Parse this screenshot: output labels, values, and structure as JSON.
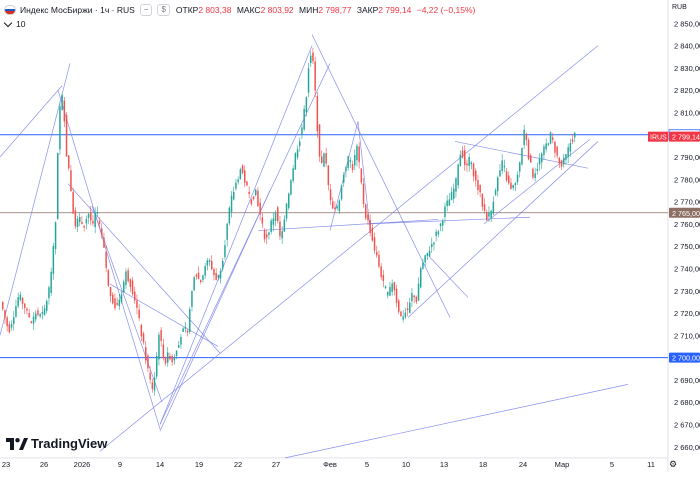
{
  "legend": {
    "title": "Индекс МосБиржи · 1ч · RUS",
    "btn_minus": "−",
    "btn_dollar": "$",
    "open_label": "ОТКР",
    "open": "2 803,38",
    "high_label": "МАКС",
    "high": "2 803,92",
    "low_label": "МИН",
    "low": "2 798,77",
    "close_label": "ЗАКР",
    "close": "2 799,14",
    "change": "−4,22 (−0,15%)"
  },
  "indicators_count": "10",
  "currency": "RUB",
  "brand": "TradingView",
  "colors": {
    "up": "#26a69a",
    "down": "#ef5350",
    "trend": "#7b83eb",
    "hline": "#2962ff",
    "brown": "#8d6e63"
  },
  "chart_data": {
    "type": "candlestick",
    "title": "Индекс МосБиржи · 1ч · RUS",
    "ylim": [
      2655,
      2858
    ],
    "y_ticks": [
      2660,
      2670,
      2680,
      2690,
      2700,
      2710,
      2720,
      2730,
      2740,
      2750,
      2760,
      2770,
      2780,
      2790,
      2800,
      2810,
      2820,
      2830,
      2840,
      2850
    ],
    "x_labels": [
      "23",
      "26",
      "2026",
      "9",
      "14",
      "19",
      "22",
      "27",
      "Фев",
      "5",
      "10",
      "13",
      "18",
      "24",
      "Мар",
      "5",
      "11"
    ],
    "price_labels": [
      {
        "value": 2800,
        "text": "2 800,00",
        "style": "hline"
      },
      {
        "value": 2799.14,
        "text": "2 799,14",
        "tag": "IRUS",
        "style": "last"
      },
      {
        "value": 2765,
        "text": "2 765,00",
        "style": "brown"
      },
      {
        "value": 2700,
        "text": "2 700,00",
        "style": "hline"
      }
    ],
    "horizontal_lines": [
      2800,
      2765,
      2700
    ],
    "close_path": [
      [
        0,
        2725
      ],
      [
        4,
        2718
      ],
      [
        8,
        2712
      ],
      [
        12,
        2718
      ],
      [
        18,
        2728
      ],
      [
        25,
        2722
      ],
      [
        30,
        2715
      ],
      [
        35,
        2720
      ],
      [
        42,
        2718
      ],
      [
        48,
        2730
      ],
      [
        52,
        2745
      ],
      [
        55,
        2762
      ],
      [
        58,
        2808
      ],
      [
        61,
        2818
      ],
      [
        63,
        2812
      ],
      [
        66,
        2790
      ],
      [
        68,
        2785
      ],
      [
        71,
        2772
      ],
      [
        74,
        2760
      ],
      [
        78,
        2762
      ],
      [
        83,
        2760
      ],
      [
        88,
        2765
      ],
      [
        92,
        2758
      ],
      [
        95,
        2766
      ],
      [
        98,
        2760
      ],
      [
        102,
        2752
      ],
      [
        105,
        2742
      ],
      [
        108,
        2730
      ],
      [
        112,
        2726
      ],
      [
        115,
        2722
      ],
      [
        120,
        2728
      ],
      [
        125,
        2738
      ],
      [
        130,
        2733
      ],
      [
        135,
        2725
      ],
      [
        140,
        2712
      ],
      [
        145,
        2700
      ],
      [
        149,
        2690
      ],
      [
        152,
        2686
      ],
      [
        155,
        2695
      ],
      [
        158,
        2712
      ],
      [
        162,
        2702
      ],
      [
        165,
        2698
      ],
      [
        168,
        2702
      ],
      [
        172,
        2698
      ],
      [
        176,
        2705
      ],
      [
        182,
        2712
      ],
      [
        186,
        2710
      ],
      [
        190,
        2725
      ],
      [
        194,
        2740
      ],
      [
        198,
        2735
      ],
      [
        203,
        2738
      ],
      [
        208,
        2745
      ],
      [
        212,
        2738
      ],
      [
        217,
        2735
      ],
      [
        222,
        2745
      ],
      [
        226,
        2758
      ],
      [
        230,
        2770
      ],
      [
        235,
        2778
      ],
      [
        240,
        2785
      ],
      [
        245,
        2778
      ],
      [
        250,
        2770
      ],
      [
        255,
        2775
      ],
      [
        260,
        2762
      ],
      [
        265,
        2752
      ],
      [
        270,
        2760
      ],
      [
        275,
        2766
      ],
      [
        280,
        2752
      ],
      [
        285,
        2765
      ],
      [
        290,
        2780
      ],
      [
        295,
        2792
      ],
      [
        300,
        2800
      ],
      [
        305,
        2815
      ],
      [
        308,
        2832
      ],
      [
        311,
        2838
      ],
      [
        314,
        2822
      ],
      [
        317,
        2800
      ],
      [
        320,
        2785
      ],
      [
        324,
        2792
      ],
      [
        328,
        2775
      ],
      [
        332,
        2768
      ],
      [
        336,
        2766
      ],
      [
        340,
        2775
      ],
      [
        344,
        2785
      ],
      [
        348,
        2790
      ],
      [
        352,
        2785
      ],
      [
        356,
        2795
      ],
      [
        360,
        2780
      ],
      [
        364,
        2765
      ],
      [
        368,
        2760
      ],
      [
        372,
        2752
      ],
      [
        376,
        2745
      ],
      [
        380,
        2738
      ],
      [
        384,
        2730
      ],
      [
        388,
        2728
      ],
      [
        392,
        2735
      ],
      [
        396,
        2725
      ],
      [
        400,
        2718
      ],
      [
        404,
        2720
      ],
      [
        408,
        2722
      ],
      [
        412,
        2730
      ],
      [
        416,
        2725
      ],
      [
        420,
        2740
      ],
      [
        425,
        2745
      ],
      [
        430,
        2750
      ],
      [
        435,
        2755
      ],
      [
        440,
        2760
      ],
      [
        445,
        2768
      ],
      [
        450,
        2772
      ],
      [
        455,
        2778
      ],
      [
        458,
        2790
      ],
      [
        461,
        2793
      ],
      [
        465,
        2785
      ],
      [
        470,
        2790
      ],
      [
        474,
        2780
      ],
      [
        478,
        2775
      ],
      [
        482,
        2768
      ],
      [
        486,
        2763
      ],
      [
        490,
        2765
      ],
      [
        494,
        2775
      ],
      [
        498,
        2782
      ],
      [
        502,
        2788
      ],
      [
        506,
        2780
      ],
      [
        510,
        2775
      ],
      [
        515,
        2778
      ],
      [
        520,
        2790
      ],
      [
        524,
        2804
      ],
      [
        528,
        2790
      ],
      [
        532,
        2782
      ],
      [
        536,
        2785
      ],
      [
        540,
        2790
      ],
      [
        545,
        2795
      ],
      [
        550,
        2800
      ],
      [
        555,
        2792
      ],
      [
        560,
        2785
      ],
      [
        565,
        2790
      ],
      [
        570,
        2797
      ],
      [
        574,
        2800
      ],
      [
        576,
        2799.14
      ]
    ],
    "trend_lines": [
      [
        [
          0,
          2710
        ],
        [
          70,
          2832
        ]
      ],
      [
        [
          0,
          2790
        ],
        [
          62,
          2822
        ]
      ],
      [
        [
          58,
          2820
        ],
        [
          160,
          2668
        ]
      ],
      [
        [
          68,
          2778
        ],
        [
          220,
          2702
        ]
      ],
      [
        [
          92,
          2768
        ],
        [
          162,
          2680
        ]
      ],
      [
        [
          110,
          2733
        ],
        [
          218,
          2705
        ]
      ],
      [
        [
          160,
          2670
        ],
        [
          312,
          2840
        ]
      ],
      [
        [
          160,
          2670
        ],
        [
          330,
          2832
        ]
      ],
      [
        [
          160,
          2667
        ],
        [
          270,
          2775
        ]
      ],
      [
        [
          258,
          2757
        ],
        [
          438,
          2762
        ]
      ],
      [
        [
          312,
          2845
        ],
        [
          450,
          2718
        ]
      ],
      [
        [
          330,
          2757
        ],
        [
          358,
          2806
        ]
      ],
      [
        [
          358,
          2806
        ],
        [
          370,
          2758
        ]
      ],
      [
        [
          100,
          2658
        ],
        [
          598,
          2840
        ]
      ],
      [
        [
          285,
          2655
        ],
        [
          628,
          2688
        ]
      ],
      [
        [
          368,
          2760
        ],
        [
          530,
          2763
        ]
      ],
      [
        [
          430,
          2745
        ],
        [
          468,
          2727
        ]
      ],
      [
        [
          408,
          2718
        ],
        [
          598,
          2797
        ]
      ],
      [
        [
          455,
          2797
        ],
        [
          588,
          2785
        ]
      ],
      [
        [
          484,
          2760
        ],
        [
          590,
          2798
        ]
      ]
    ]
  }
}
